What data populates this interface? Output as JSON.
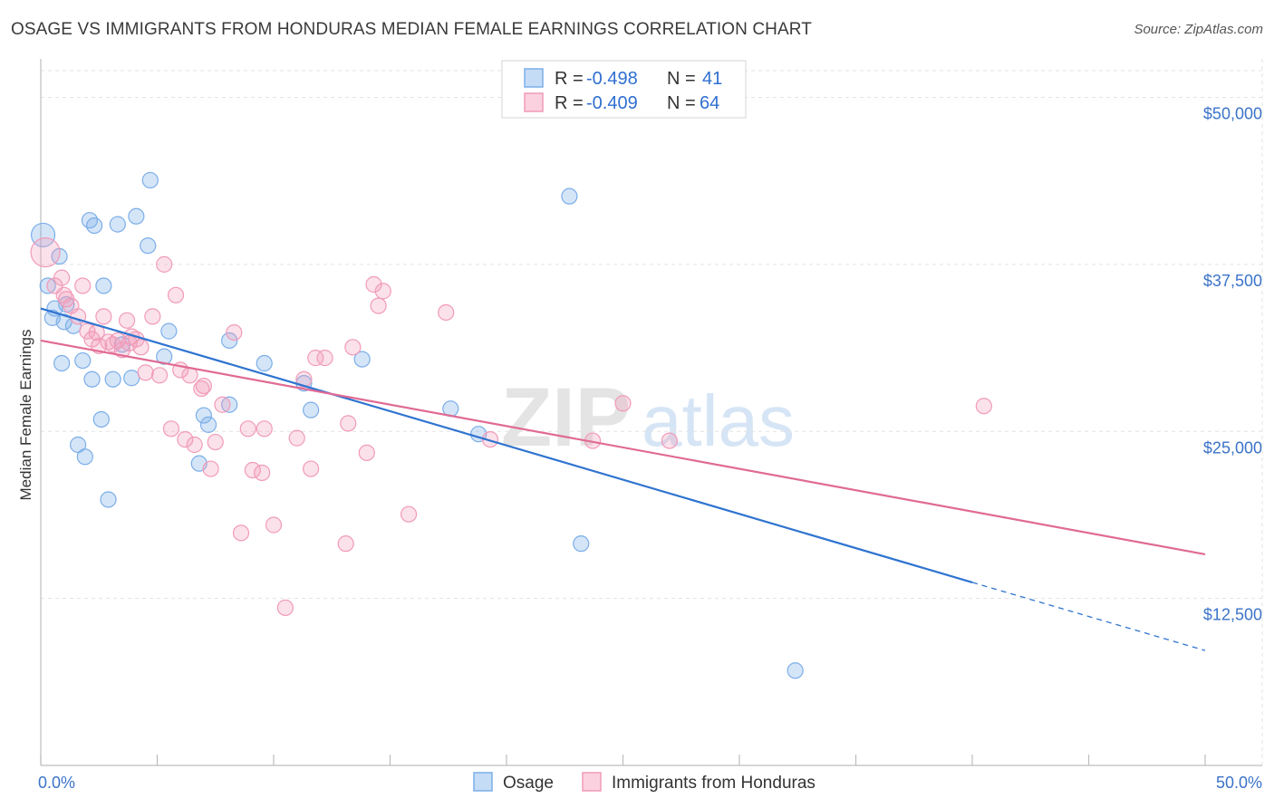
{
  "header": {
    "title": "OSAGE VS IMMIGRANTS FROM HONDURAS MEDIAN FEMALE EARNINGS CORRELATION CHART",
    "source": "Source: ZipAtlas.com"
  },
  "watermark": {
    "part1": "ZIP",
    "part2": "atlas"
  },
  "legend": {
    "rows": [
      {
        "r_label": "R =",
        "r_value": "-0.498",
        "n_label": "N =",
        "n_value": "41",
        "color": "#7baee8"
      },
      {
        "r_label": "R =",
        "r_value": "-0.409",
        "n_label": "N =",
        "n_value": "64",
        "color": "#f19bb8"
      }
    ]
  },
  "bottom_legend": [
    {
      "label": "Osage",
      "color": "#7baee8"
    },
    {
      "label": "Immigrants from Honduras",
      "color": "#f19bb8"
    }
  ],
  "chart_data": {
    "type": "scatter",
    "xlabel": "",
    "ylabel": "Median Female Earnings",
    "xlim": [
      0,
      50
    ],
    "ylim": [
      0,
      52000
    ],
    "x_tick_labels": [
      {
        "value": 0,
        "label": "0.0%"
      },
      {
        "value": 50,
        "label": "50.0%"
      }
    ],
    "y_tick_labels": [
      {
        "value": 12500,
        "label": "$12,500"
      },
      {
        "value": 25000,
        "label": "$25,000"
      },
      {
        "value": 37500,
        "label": "$37,500"
      },
      {
        "value": 50000,
        "label": "$50,000"
      }
    ],
    "grid": true,
    "series": [
      {
        "name": "Osage",
        "color": "#7baee8",
        "line_color": "#2f74d0",
        "trend": {
          "x0": 0,
          "y0": 34200,
          "x1": 40,
          "y1": 13700,
          "dash_to_x": 50,
          "dash_to_y": 8600
        },
        "points": [
          [
            0.1,
            39700,
            2
          ],
          [
            0.3,
            35900,
            1
          ],
          [
            0.5,
            33500,
            1
          ],
          [
            0.8,
            38100,
            1
          ],
          [
            0.6,
            34200,
            1
          ],
          [
            1.0,
            33200,
            1
          ],
          [
            0.9,
            30100,
            1
          ],
          [
            1.1,
            34500,
            1
          ],
          [
            1.4,
            32900,
            1
          ],
          [
            1.8,
            30300,
            1
          ],
          [
            2.1,
            40800,
            1
          ],
          [
            2.3,
            40400,
            1
          ],
          [
            2.2,
            28900,
            1
          ],
          [
            2.6,
            25900,
            1
          ],
          [
            2.7,
            35900,
            1
          ],
          [
            3.1,
            28900,
            1
          ],
          [
            3.3,
            40500,
            1
          ],
          [
            3.5,
            31500,
            1
          ],
          [
            3.9,
            29000,
            1
          ],
          [
            4.1,
            41100,
            1
          ],
          [
            4.6,
            38900,
            1
          ],
          [
            4.7,
            43800,
            1
          ],
          [
            5.3,
            30600,
            1
          ],
          [
            5.5,
            32500,
            1
          ],
          [
            6.8,
            22600,
            1
          ],
          [
            7.0,
            26200,
            1
          ],
          [
            7.2,
            25500,
            1
          ],
          [
            8.1,
            27000,
            1
          ],
          [
            8.1,
            31800,
            1
          ],
          [
            9.6,
            30100,
            1
          ],
          [
            11.3,
            28600,
            1
          ],
          [
            11.6,
            26600,
            1
          ],
          [
            13.8,
            30400,
            1
          ],
          [
            17.6,
            26700,
            1
          ],
          [
            18.8,
            24800,
            1
          ],
          [
            22.7,
            42600,
            1
          ],
          [
            23.2,
            16600,
            1
          ],
          [
            32.4,
            7100,
            1
          ],
          [
            1.6,
            24000,
            1
          ],
          [
            1.9,
            23100,
            1
          ],
          [
            2.9,
            19900,
            1
          ]
        ]
      },
      {
        "name": "Immigrants from Honduras",
        "color": "#f19bb8",
        "line_color": "#e06a94",
        "trend": {
          "x0": 0,
          "y0": 31800,
          "x1": 50,
          "y1": 15800
        },
        "points": [
          [
            0.2,
            38400,
            3
          ],
          [
            0.6,
            35900,
            1
          ],
          [
            0.9,
            36500,
            1
          ],
          [
            1.1,
            34900,
            1
          ],
          [
            1.3,
            34400,
            1
          ],
          [
            1.6,
            33600,
            1
          ],
          [
            1.8,
            35900,
            1
          ],
          [
            2.0,
            32500,
            1
          ],
          [
            2.2,
            31900,
            1
          ],
          [
            2.4,
            32400,
            1
          ],
          [
            2.7,
            33600,
            1
          ],
          [
            2.9,
            31700,
            1
          ],
          [
            3.1,
            31500,
            1
          ],
          [
            3.3,
            31800,
            1
          ],
          [
            3.5,
            31100,
            1
          ],
          [
            3.7,
            33300,
            1
          ],
          [
            3.9,
            32100,
            1
          ],
          [
            4.1,
            31900,
            1
          ],
          [
            4.3,
            31300,
            1
          ],
          [
            4.5,
            29400,
            1
          ],
          [
            4.8,
            33600,
            1
          ],
          [
            5.1,
            29200,
            1
          ],
          [
            5.3,
            37500,
            1
          ],
          [
            5.6,
            25200,
            1
          ],
          [
            5.8,
            35200,
            1
          ],
          [
            6.0,
            29600,
            1
          ],
          [
            6.2,
            24400,
            1
          ],
          [
            6.4,
            29200,
            1
          ],
          [
            6.6,
            24000,
            1
          ],
          [
            6.9,
            28200,
            1
          ],
          [
            7.0,
            28400,
            1
          ],
          [
            7.3,
            22200,
            1
          ],
          [
            7.5,
            24200,
            1
          ],
          [
            7.8,
            27000,
            1
          ],
          [
            8.3,
            32400,
            1
          ],
          [
            8.6,
            17400,
            1
          ],
          [
            8.9,
            25200,
            1
          ],
          [
            9.1,
            22100,
            1
          ],
          [
            9.5,
            21900,
            1
          ],
          [
            9.6,
            25200,
            1
          ],
          [
            10.0,
            18000,
            1
          ],
          [
            10.5,
            11800,
            1
          ],
          [
            11.0,
            24500,
            1
          ],
          [
            11.3,
            28900,
            1
          ],
          [
            11.6,
            22200,
            1
          ],
          [
            11.8,
            30500,
            1
          ],
          [
            12.2,
            30500,
            1
          ],
          [
            13.1,
            16600,
            1
          ],
          [
            13.2,
            25600,
            1
          ],
          [
            13.4,
            31300,
            1
          ],
          [
            14.0,
            23400,
            1
          ],
          [
            14.3,
            36000,
            1
          ],
          [
            14.7,
            35500,
            1
          ],
          [
            14.5,
            34400,
            1
          ],
          [
            15.8,
            18800,
            1
          ],
          [
            17.4,
            33900,
            1
          ],
          [
            19.3,
            24400,
            1
          ],
          [
            23.7,
            24300,
            1
          ],
          [
            25.0,
            27100,
            1
          ],
          [
            27.0,
            24300,
            1
          ],
          [
            40.5,
            26900,
            1
          ],
          [
            1.0,
            35200,
            1
          ],
          [
            2.5,
            31400,
            1
          ],
          [
            3.8,
            31600,
            1
          ]
        ]
      }
    ]
  }
}
